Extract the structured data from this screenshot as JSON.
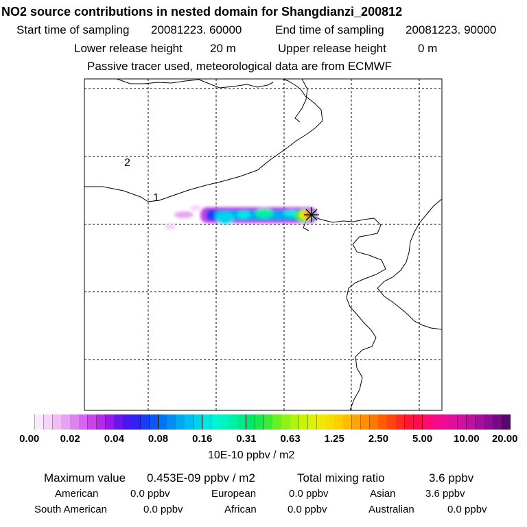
{
  "title": "NO2 source contributions in nested domain for Shangdianzi_200812",
  "header": {
    "start_label": "Start time of sampling",
    "start_value": "20081223. 60000",
    "end_label": "End time of sampling",
    "end_value": "20081223. 90000",
    "lower_label": "Lower release height",
    "lower_value": "20 m",
    "upper_label": "Upper release height",
    "upper_value": "0 m",
    "note": "Passive tracer used, meteorological data are from ECMWF"
  },
  "map": {
    "grid_labels": [
      "2",
      "1"
    ],
    "station_marker": "x-star"
  },
  "colorbar": {
    "unit": "10E-10 ppbv / m2",
    "tick_labels": [
      "0.00",
      "0.02",
      "0.04",
      "0.08",
      "0.16",
      "0.31",
      "0.63",
      "1.25",
      "2.50",
      "5.00",
      "10.00",
      "20.00"
    ],
    "colors": [
      [
        "#ffffff",
        "#fbeafc",
        "#f5d4f8",
        "#efbff4",
        "#e6a4f0"
      ],
      [
        "#dd82ee",
        "#d565ec",
        "#c744ea",
        "#b32aea",
        "#9a16ea"
      ],
      [
        "#6a14ea",
        "#4a16f0",
        "#2d22f5",
        "#1a3cf7",
        "#0b58f5"
      ],
      [
        "#0474f0",
        "#028ef0",
        "#00a8f0",
        "#00bff0",
        "#00d2ee"
      ],
      [
        "#00e8e6",
        "#00f4d6",
        "#00f4c0",
        "#00f0a6",
        "#00ec8c"
      ],
      [
        "#00e86a",
        "#1ae84e",
        "#3eea32",
        "#6aee20",
        "#8ef214"
      ],
      [
        "#aef40e",
        "#c8f40a",
        "#def008",
        "#eeea06",
        "#f8dc04"
      ],
      [
        "#ffd000",
        "#ffbc00",
        "#ffa600",
        "#ff8e00",
        "#ff7600"
      ],
      [
        "#ff5c00",
        "#ff4410",
        "#ff2a22",
        "#ff1636",
        "#ff0a50"
      ],
      [
        "#ff0a6e",
        "#f80a86",
        "#ee0c96",
        "#e00e9e",
        "#d20ea2"
      ],
      [
        "#c00ea2",
        "#a80e9e",
        "#8e0c94",
        "#740a84",
        "#5a0670"
      ]
    ]
  },
  "summary": {
    "max_label": "Maximum value",
    "max_value": "0.453E-09 ppbv / m2",
    "total_label": "Total mixing ratio",
    "total_value": "3.6 ppbv",
    "regions": [
      {
        "name": "American",
        "value": "0.0 ppbv"
      },
      {
        "name": "European",
        "value": "0.0 ppbv"
      },
      {
        "name": "Asian",
        "value": "3.6 ppbv"
      },
      {
        "name": "South American",
        "value": "0.0 ppbv"
      },
      {
        "name": "African",
        "value": "0.0 ppbv"
      },
      {
        "name": "Australian",
        "value": "0.0 ppbv"
      }
    ]
  }
}
